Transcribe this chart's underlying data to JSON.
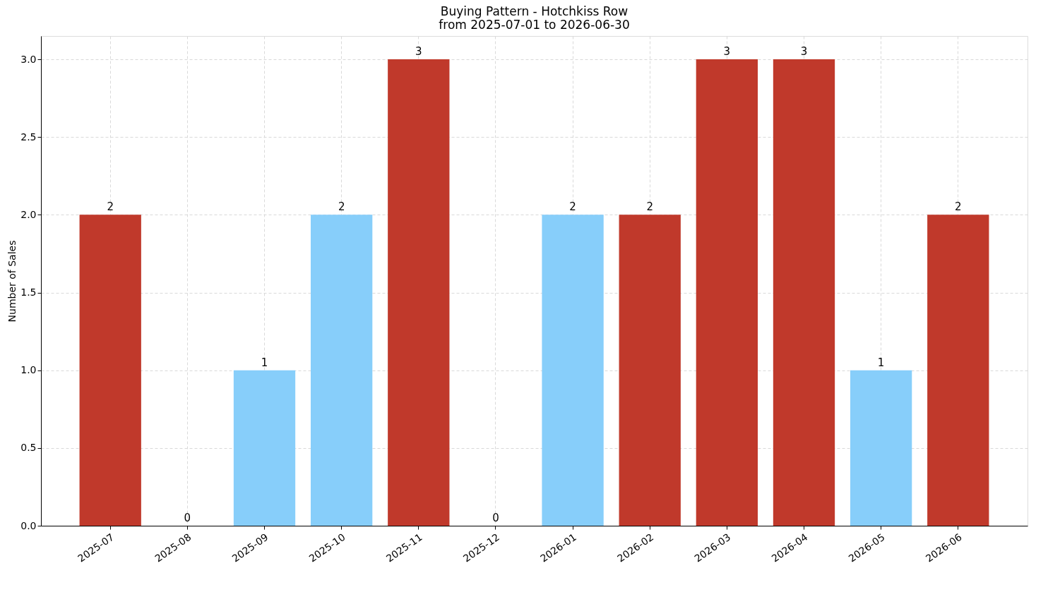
{
  "chart_data": {
    "type": "bar",
    "title": "Buying Pattern - Hotchkiss Row",
    "subtitle": "from 2025-07-01 to 2026-06-30",
    "ylabel": "Number of Sales",
    "categories": [
      "2025-07",
      "2025-08",
      "2025-09",
      "2025-10",
      "2025-11",
      "2025-12",
      "2026-01",
      "2026-02",
      "2026-03",
      "2026-04",
      "2026-05",
      "2026-06"
    ],
    "values": [
      2,
      0,
      1,
      2,
      3,
      0,
      2,
      2,
      3,
      3,
      1,
      2
    ],
    "colors": [
      "#c0392b",
      "#c0392b",
      "#87cefa",
      "#87cefa",
      "#c0392b",
      "#c0392b",
      "#87cefa",
      "#c0392b",
      "#c0392b",
      "#c0392b",
      "#87cefa",
      "#c0392b"
    ],
    "ylim": [
      0,
      3.15
    ],
    "yticks": [
      {
        "value": 0,
        "label": "0.0"
      },
      0.5,
      {
        "value": 1,
        "label": "1.0"
      },
      1.5,
      {
        "value": 2,
        "label": "2.0"
      },
      2.5,
      {
        "value": 3,
        "label": "3.0"
      }
    ],
    "grid": true,
    "data_labels": true
  }
}
